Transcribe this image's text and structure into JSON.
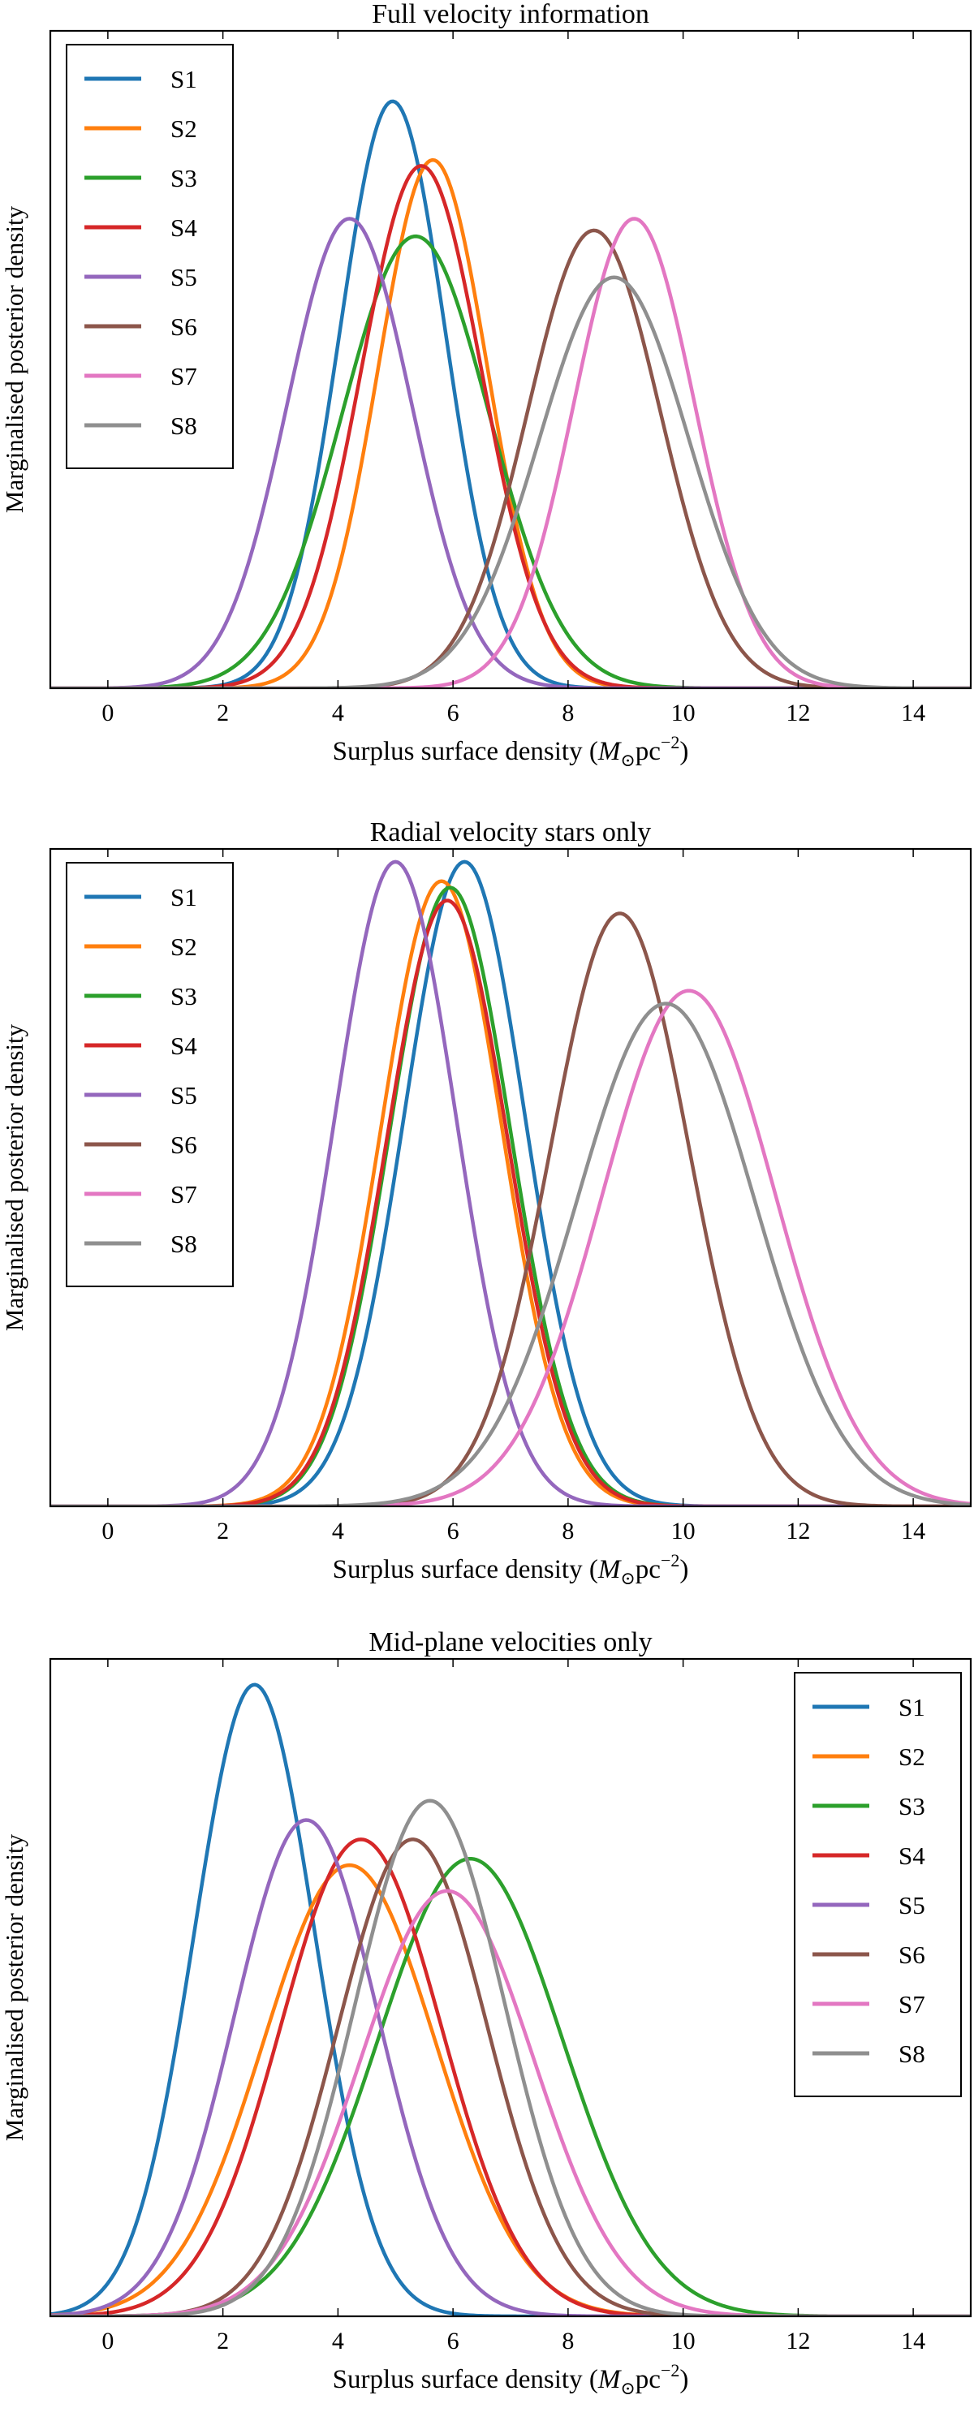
{
  "chart_data": [
    {
      "type": "line",
      "title": "Full velocity information",
      "xlabel": "Surplus surface density",
      "xlabel_unit": {
        "symbol": "M",
        "sub": "⊙",
        "rest": "pc",
        "sup": "−2"
      },
      "ylabel": "Marginalised posterior density",
      "xlim": [
        -1,
        15
      ],
      "ylim": [
        0,
        1.12
      ],
      "xticks": [
        "0",
        "2",
        "4",
        "6",
        "8",
        "10",
        "12",
        "14"
      ],
      "legend_position": "top-left",
      "series": [
        {
          "name": "S1",
          "mu": 4.95,
          "sigma": 0.92,
          "peak": 1.0
        },
        {
          "name": "S2",
          "mu": 5.65,
          "sigma": 0.95,
          "peak": 0.9
        },
        {
          "name": "S3",
          "mu": 5.35,
          "sigma": 1.28,
          "peak": 0.77
        },
        {
          "name": "S4",
          "mu": 5.45,
          "sigma": 1.05,
          "peak": 0.89
        },
        {
          "name": "S5",
          "mu": 4.2,
          "sigma": 1.08,
          "peak": 0.8
        },
        {
          "name": "S6",
          "mu": 8.45,
          "sigma": 1.15,
          "peak": 0.78
        },
        {
          "name": "S7",
          "mu": 9.15,
          "sigma": 1.05,
          "peak": 0.8
        },
        {
          "name": "S8",
          "mu": 8.8,
          "sigma": 1.3,
          "peak": 0.7
        }
      ]
    },
    {
      "type": "line",
      "title": "Radial velocity stars only",
      "xlabel": "Surplus surface density",
      "xlabel_unit": {
        "symbol": "M",
        "sub": "⊙",
        "rest": "pc",
        "sup": "−2"
      },
      "ylabel": "Marginalised posterior density",
      "xlim": [
        -1,
        15
      ],
      "ylim": [
        0,
        1.02
      ],
      "xticks": [
        "0",
        "2",
        "4",
        "6",
        "8",
        "10",
        "12",
        "14"
      ],
      "legend_position": "top-left",
      "series": [
        {
          "name": "S1",
          "mu": 6.2,
          "sigma": 1.05,
          "peak": 1.0
        },
        {
          "name": "S2",
          "mu": 5.8,
          "sigma": 1.05,
          "peak": 0.97
        },
        {
          "name": "S3",
          "mu": 5.95,
          "sigma": 1.05,
          "peak": 0.96
        },
        {
          "name": "S4",
          "mu": 5.9,
          "sigma": 1.05,
          "peak": 0.94
        },
        {
          "name": "S5",
          "mu": 5.0,
          "sigma": 1.05,
          "peak": 1.0
        },
        {
          "name": "S6",
          "mu": 8.9,
          "sigma": 1.2,
          "peak": 0.92
        },
        {
          "name": "S7",
          "mu": 10.1,
          "sigma": 1.5,
          "peak": 0.8
        },
        {
          "name": "S8",
          "mu": 9.7,
          "sigma": 1.55,
          "peak": 0.78
        }
      ]
    },
    {
      "type": "line",
      "title": "Mid-plane velocities only",
      "xlabel": "Surplus surface density",
      "xlabel_unit": {
        "symbol": "M",
        "sub": "⊙",
        "rest": "pc",
        "sup": "−2"
      },
      "ylabel": "Marginalised posterior density",
      "xlim": [
        -1,
        15
      ],
      "ylim": [
        0,
        1.02
      ],
      "xticks": [
        "0",
        "2",
        "4",
        "6",
        "8",
        "10",
        "12",
        "14"
      ],
      "legend_position": "top-right",
      "series": [
        {
          "name": "S1",
          "mu": 2.55,
          "sigma": 1.05,
          "peak": 0.98
        },
        {
          "name": "S2",
          "mu": 4.2,
          "sigma": 1.5,
          "peak": 0.7
        },
        {
          "name": "S3",
          "mu": 6.3,
          "sigma": 1.6,
          "peak": 0.71
        },
        {
          "name": "S4",
          "mu": 4.4,
          "sigma": 1.4,
          "peak": 0.74
        },
        {
          "name": "S5",
          "mu": 3.45,
          "sigma": 1.25,
          "peak": 0.77
        },
        {
          "name": "S6",
          "mu": 5.3,
          "sigma": 1.3,
          "peak": 0.74
        },
        {
          "name": "S7",
          "mu": 5.9,
          "sigma": 1.5,
          "peak": 0.66
        },
        {
          "name": "S8",
          "mu": 5.6,
          "sigma": 1.3,
          "peak": 0.8
        }
      ]
    }
  ],
  "colors": {
    "S1": "#1f77b4",
    "S2": "#ff7f0e",
    "S3": "#2ca02c",
    "S4": "#d62728",
    "S5": "#9467bd",
    "S6": "#8c564b",
    "S7": "#e377c2",
    "S8": "#8f8f8f"
  }
}
